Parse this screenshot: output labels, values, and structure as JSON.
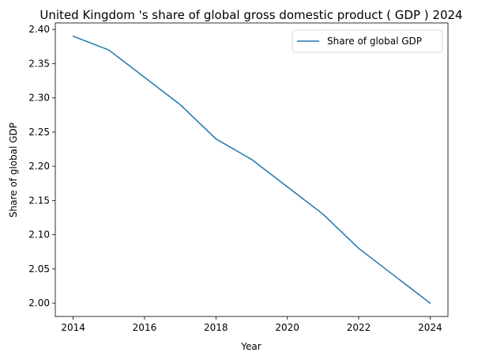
{
  "chart_data": {
    "type": "line",
    "title": "United Kingdom 's share of global gross domestic product ( GDP ) 2024",
    "xlabel": "Year",
    "ylabel": "Share of global GDP",
    "x": [
      2014,
      2015,
      2016,
      2017,
      2018,
      2019,
      2020,
      2021,
      2022,
      2023,
      2024
    ],
    "series": [
      {
        "name": "Share of global GDP",
        "values": [
          2.39,
          2.37,
          2.33,
          2.29,
          2.24,
          2.21,
          2.17,
          2.13,
          2.08,
          2.04,
          2.0
        ],
        "color": "#1f77b4"
      }
    ],
    "xlim": [
      2013.5,
      2024.5
    ],
    "ylim": [
      1.9805,
      2.4095
    ],
    "xticks": [
      2014,
      2016,
      2018,
      2020,
      2022,
      2024
    ],
    "yticks": [
      "2.00",
      "2.05",
      "2.10",
      "2.15",
      "2.20",
      "2.25",
      "2.30",
      "2.35",
      "2.40"
    ],
    "grid": false,
    "legend_position": "top-right"
  }
}
